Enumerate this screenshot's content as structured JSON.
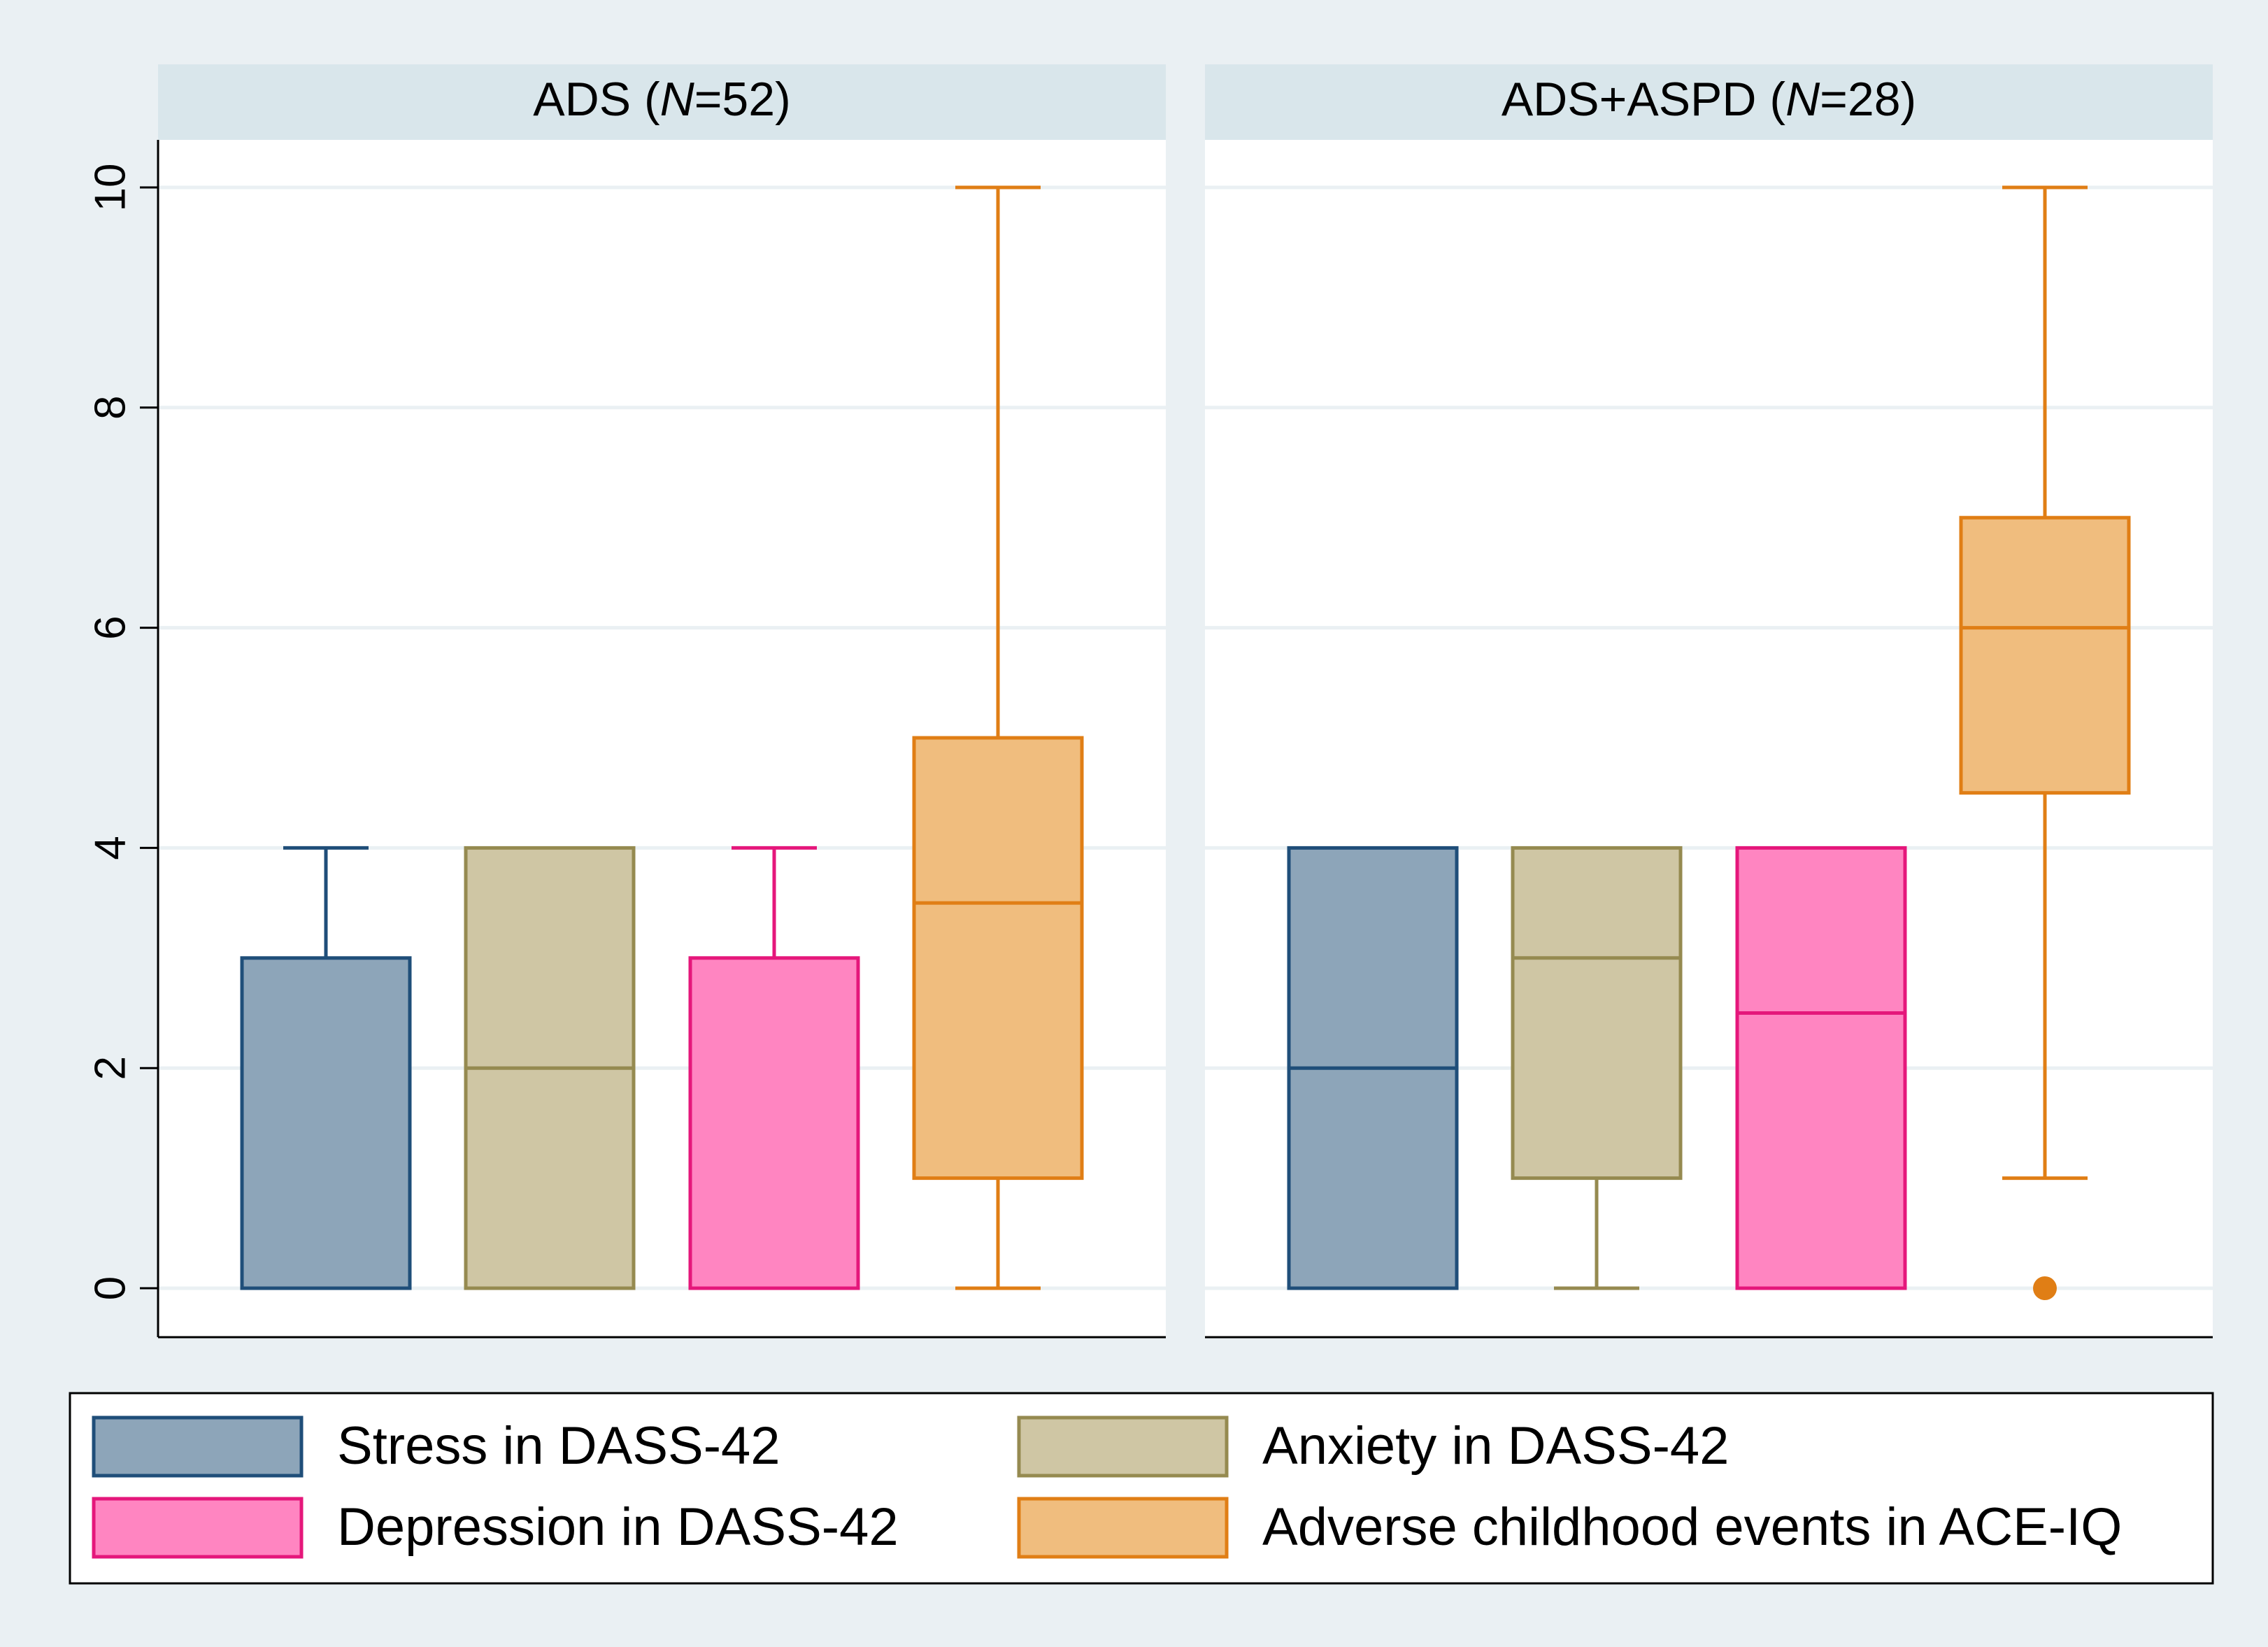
{
  "chart_data": {
    "type": "boxplot",
    "y_axis": {
      "ylim": [
        0,
        10
      ],
      "ticks": [
        "0",
        "2",
        "4",
        "6",
        "8",
        "10"
      ],
      "label": ""
    },
    "grid": true,
    "legend_position": "bottom",
    "series": [
      {
        "name": "Stress in DASS-42",
        "fill": "#8da5b9",
        "stroke": "#1f4e79"
      },
      {
        "name": "Anxiety in DASS-42",
        "fill": "#cfc6a4",
        "stroke": "#958a50"
      },
      {
        "name": "Depression in DASS-42",
        "fill": "#ff85c1",
        "stroke": "#e5177b"
      },
      {
        "name": "Adverse childhood events in ACE-IQ",
        "fill": "#f0bd7e",
        "stroke": "#e07e15"
      }
    ],
    "panels": [
      {
        "group": "ADS",
        "n_label": "N",
        "n_value": "=52",
        "title_prefix": "ADS (",
        "title_suffix": ")",
        "boxes": [
          {
            "series": "Stress in DASS-42",
            "whisker_low": 0,
            "q1": 0,
            "median": 0,
            "q3": 3,
            "whisker_high": 4,
            "outliers": []
          },
          {
            "series": "Anxiety in DASS-42",
            "whisker_low": 0,
            "q1": 0,
            "median": 2,
            "q3": 4,
            "whisker_high": 4,
            "outliers": []
          },
          {
            "series": "Depression in DASS-42",
            "whisker_low": 0,
            "q1": 0,
            "median": 0,
            "q3": 3,
            "whisker_high": 4,
            "outliers": []
          },
          {
            "series": "Adverse childhood events in ACE-IQ",
            "whisker_low": 0,
            "q1": 1,
            "median": 3.5,
            "q3": 5,
            "whisker_high": 10,
            "outliers": []
          }
        ]
      },
      {
        "group": "ADS+ASPD",
        "n_label": "N",
        "n_value": "=28",
        "title_prefix": "ADS+ASPD (",
        "title_suffix": ")",
        "boxes": [
          {
            "series": "Stress in DASS-42",
            "whisker_low": 0,
            "q1": 0,
            "median": 2,
            "q3": 4,
            "whisker_high": 4,
            "outliers": []
          },
          {
            "series": "Anxiety in DASS-42",
            "whisker_low": 0,
            "q1": 1,
            "median": 3,
            "q3": 4,
            "whisker_high": 4,
            "outliers": []
          },
          {
            "series": "Depression in DASS-42",
            "whisker_low": 0,
            "q1": 0,
            "median": 2.5,
            "q3": 4,
            "whisker_high": 4,
            "outliers": []
          },
          {
            "series": "Adverse childhood events in ACE-IQ",
            "whisker_low": 1,
            "q1": 4.5,
            "median": 6,
            "q3": 7,
            "whisker_high": 10,
            "outliers": [
              0
            ]
          }
        ]
      }
    ]
  }
}
